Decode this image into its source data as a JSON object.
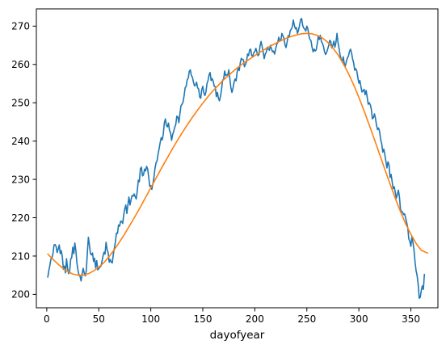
{
  "chart_data": {
    "type": "line",
    "title": "",
    "xlabel": "dayofyear",
    "ylabel": "",
    "xlim": [
      -10,
      376
    ],
    "ylim": [
      196.5,
      274.5
    ],
    "x_ticks": [
      0,
      50,
      100,
      150,
      200,
      250,
      300,
      350
    ],
    "y_ticks": [
      200,
      210,
      220,
      230,
      240,
      250,
      260,
      270
    ],
    "grid": false,
    "legend": "none",
    "series": [
      {
        "color": "#1f77b4",
        "x_start": 1,
        "x_step": 1,
        "values": [
          204.5,
          206.2,
          207.6,
          209.2,
          209.5,
          210.7,
          212.9,
          213.0,
          212.5,
          210.9,
          211.8,
          212.9,
          210.6,
          211.4,
          209.7,
          206.5,
          207.4,
          205.6,
          209.3,
          206.8,
          205.4,
          206.0,
          209.2,
          209.6,
          212.3,
          210.6,
          213.4,
          211.4,
          208.1,
          206.3,
          205.0,
          204.7,
          203.5,
          205.3,
          206.8,
          205.6,
          204.8,
          206.1,
          210.8,
          214.9,
          212.9,
          210.6,
          210.3,
          210.8,
          208.6,
          209.4,
          206.9,
          208.8,
          206.4,
          206.7,
          207.1,
          207.3,
          208.5,
          209.9,
          211.0,
          210.5,
          213.6,
          211.7,
          210.9,
          208.4,
          209.1,
          208.4,
          208.2,
          210.5,
          212.1,
          213.7,
          216.0,
          215.9,
          218.1,
          217.8,
          219.1,
          219.0,
          218.5,
          220.8,
          222.3,
          223.3,
          221.1,
          223.4,
          225.4,
          223.3,
          224.7,
          225.8,
          225.6,
          226.2,
          225.5,
          224.9,
          227.0,
          229.8,
          229.4,
          232.8,
          233.2,
          230.9,
          231.2,
          232.7,
          232.2,
          233.4,
          232.7,
          230.6,
          228.2,
          228.4,
          227.4,
          228.8,
          230.4,
          232.8,
          234.3,
          234.8,
          236.6,
          238.0,
          239.6,
          240.9,
          240.3,
          241.8,
          244.7,
          245.8,
          244.1,
          243.7,
          244.7,
          242.7,
          242.2,
          240.2,
          241.7,
          242.5,
          243.6,
          244.3,
          246.5,
          246.3,
          244.8,
          247.1,
          249.2,
          249.6,
          250.2,
          251.8,
          253.9,
          254.3,
          256.0,
          256.4,
          258.2,
          258.6,
          257.1,
          256.7,
          255.4,
          254.4,
          254.6,
          255.4,
          253.9,
          253.6,
          251.5,
          251.2,
          253.4,
          254.3,
          252.6,
          251.9,
          252.8,
          255.0,
          255.8,
          257.3,
          257.9,
          255.8,
          256.3,
          255.6,
          254.3,
          254.2,
          251.6,
          252.7,
          251.2,
          250.5,
          251.7,
          253.4,
          255.9,
          256.1,
          258.3,
          257.1,
          257.3,
          257.2,
          258.6,
          256.2,
          253.9,
          252.7,
          253.8,
          255.3,
          256.2,
          255.7,
          258.0,
          259.1,
          258.4,
          260.4,
          261.6,
          261.3,
          261.2,
          259.4,
          260.0,
          260.7,
          262.7,
          262.3,
          263.8,
          264.0,
          262.3,
          262.2,
          263.0,
          263.4,
          264.2,
          263.2,
          262.3,
          262.6,
          264.8,
          266.0,
          264.7,
          263.3,
          261.5,
          262.7,
          263.2,
          264.5,
          264.0,
          263.7,
          265.0,
          264.1,
          263.3,
          263.5,
          262.7,
          264.0,
          265.2,
          265.7,
          267.1,
          266.1,
          266.2,
          268.1,
          267.5,
          266.8,
          265.1,
          264.4,
          265.8,
          267.5,
          267.1,
          268.8,
          269.2,
          269.8,
          271.6,
          270.2,
          269.3,
          269.6,
          268.1,
          269.0,
          270.2,
          271.7,
          272.0,
          270.2,
          269.5,
          269.2,
          268.7,
          270.0,
          269.3,
          267.5,
          266.5,
          266.2,
          264.5,
          263.3,
          264.0,
          263.5,
          263.8,
          265.4,
          267.4,
          266.5,
          267.6,
          266.0,
          265.5,
          264.7,
          263.3,
          262.6,
          263.1,
          264.0,
          264.9,
          266.3,
          266.0,
          264.3,
          265.0,
          266.1,
          264.5,
          265.8,
          268.1,
          265.6,
          264.2,
          262.4,
          261.4,
          260.6,
          262.0,
          260.2,
          259.6,
          260.8,
          261.7,
          262.2,
          263.4,
          264.0,
          263.0,
          261.4,
          260.4,
          258.5,
          258.9,
          258.3,
          256.6,
          255.1,
          255.8,
          254.2,
          252.8,
          253.1,
          253.5,
          252.1,
          253.2,
          251.5,
          249.6,
          250.0,
          249.5,
          248.3,
          245.8,
          246.1,
          247.1,
          245.9,
          244.1,
          243.0,
          243.4,
          242.4,
          240.3,
          239.3,
          237.1,
          237.9,
          236.4,
          234.7,
          233.0,
          234.6,
          233.8,
          230.5,
          231.3,
          229.4,
          227.6,
          228.1,
          226.7,
          225.1,
          226.0,
          227.2,
          225.5,
          222.2,
          221.6,
          221.5,
          220.8,
          221.0,
          219.9,
          218.7,
          217.4,
          214.5,
          213.8,
          212.5,
          215.1,
          213.5,
          211.6,
          208.5,
          206.2,
          204.9,
          202.7,
          199.0,
          199.2,
          201.0,
          202.2,
          201.3,
          205.2
        ]
      },
      {
        "color": "#ff7f0e",
        "x": [
          1,
          5,
          10,
          15,
          20,
          25,
          30,
          35,
          40,
          45,
          50,
          55,
          60,
          65,
          70,
          75,
          80,
          85,
          90,
          95,
          100,
          105,
          110,
          115,
          120,
          125,
          130,
          135,
          140,
          145,
          150,
          155,
          160,
          165,
          170,
          175,
          180,
          185,
          190,
          195,
          200,
          205,
          210,
          215,
          220,
          225,
          230,
          235,
          240,
          245,
          250,
          255,
          260,
          265,
          270,
          275,
          280,
          285,
          290,
          295,
          300,
          305,
          310,
          315,
          320,
          325,
          330,
          335,
          340,
          345,
          350,
          355,
          360,
          365,
          366
        ],
        "values": [
          210.5,
          209.4,
          208.1,
          206.9,
          206.0,
          205.3,
          205.0,
          205.0,
          205.4,
          206.1,
          207.1,
          208.3,
          209.9,
          211.7,
          213.7,
          215.8,
          218.1,
          220.4,
          222.8,
          225.3,
          227.8,
          230.3,
          232.8,
          235.2,
          237.6,
          239.9,
          242.1,
          244.2,
          246.2,
          248.1,
          249.9,
          251.6,
          253.2,
          254.6,
          256.0,
          257.2,
          258.4,
          259.5,
          260.5,
          261.4,
          262.3,
          263.2,
          264.0,
          264.8,
          265.5,
          266.2,
          266.8,
          267.3,
          267.7,
          268.0,
          268.1,
          268.0,
          267.6,
          266.9,
          265.8,
          264.3,
          262.5,
          260.2,
          257.6,
          254.7,
          251.4,
          247.9,
          244.2,
          240.4,
          236.5,
          232.6,
          228.8,
          225.1,
          221.6,
          218.4,
          215.7,
          213.3,
          211.5,
          210.9,
          210.8
        ]
      }
    ]
  }
}
